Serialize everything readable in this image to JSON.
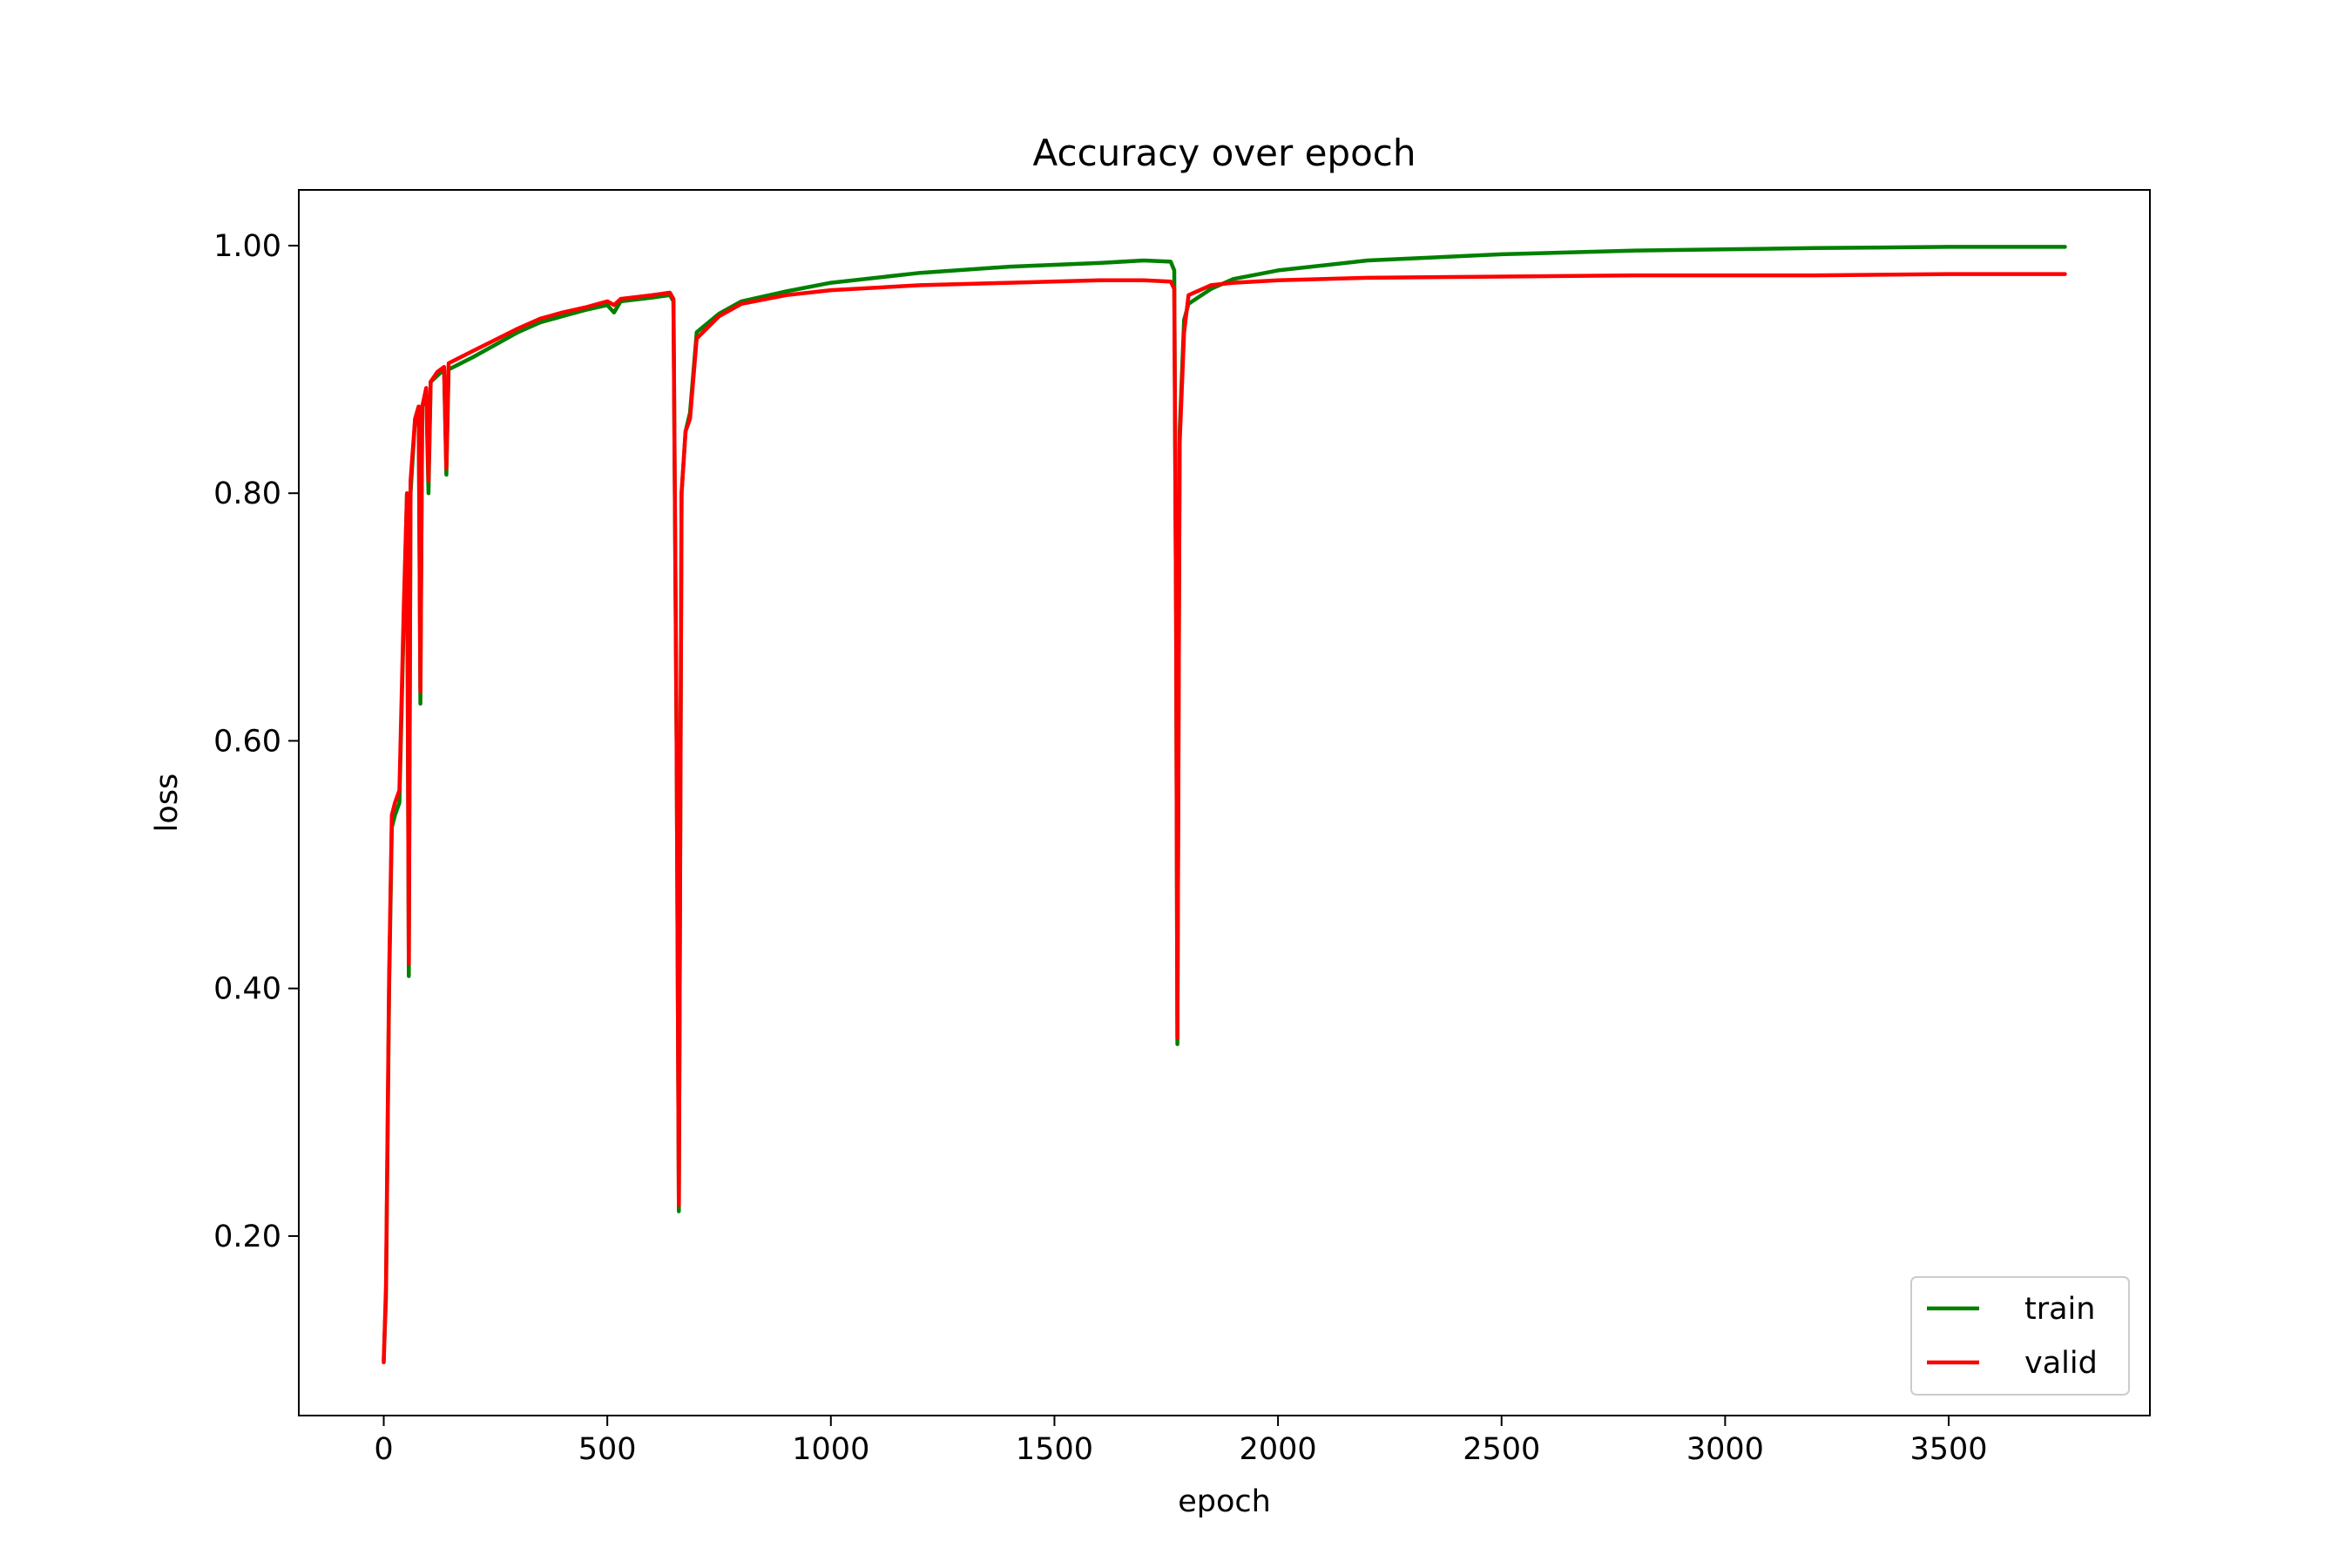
{
  "chart_data": {
    "type": "line",
    "title": "Accuracy over epoch",
    "xlabel": "epoch",
    "ylabel": "loss",
    "xlim": [
      -190,
      3950
    ],
    "ylim": [
      0.055,
      1.045
    ],
    "x_ticks": [
      0,
      500,
      1000,
      1500,
      2000,
      2500,
      3000,
      3500
    ],
    "x_tick_labels": [
      "0",
      "500",
      "1000",
      "1500",
      "2000",
      "2500",
      "3000",
      "3500"
    ],
    "y_ticks": [
      0.2,
      0.4,
      0.6,
      0.8,
      1.0
    ],
    "y_tick_labels": [
      "0.20",
      "0.40",
      "0.60",
      "0.80",
      "1.00"
    ],
    "grid": false,
    "legend_position": "lower-right",
    "series": [
      {
        "name": "train",
        "color": "#008000",
        "points": [
          [
            0,
            0.1
          ],
          [
            5,
            0.15
          ],
          [
            12,
            0.4
          ],
          [
            18,
            0.53
          ],
          [
            25,
            0.54
          ],
          [
            35,
            0.55
          ],
          [
            45,
            0.7
          ],
          [
            52,
            0.8
          ],
          [
            56,
            0.41
          ],
          [
            60,
            0.8
          ],
          [
            70,
            0.86
          ],
          [
            78,
            0.87
          ],
          [
            82,
            0.63
          ],
          [
            86,
            0.87
          ],
          [
            95,
            0.88
          ],
          [
            100,
            0.8
          ],
          [
            105,
            0.89
          ],
          [
            120,
            0.895
          ],
          [
            135,
            0.9
          ],
          [
            140,
            0.815
          ],
          [
            145,
            0.9
          ],
          [
            200,
            0.91
          ],
          [
            300,
            0.93
          ],
          [
            350,
            0.938
          ],
          [
            400,
            0.943
          ],
          [
            450,
            0.948
          ],
          [
            500,
            0.952
          ],
          [
            515,
            0.946
          ],
          [
            530,
            0.955
          ],
          [
            600,
            0.958
          ],
          [
            640,
            0.96
          ],
          [
            648,
            0.955
          ],
          [
            655,
            0.6
          ],
          [
            660,
            0.22
          ],
          [
            666,
            0.8
          ],
          [
            675,
            0.85
          ],
          [
            685,
            0.865
          ],
          [
            700,
            0.93
          ],
          [
            750,
            0.945
          ],
          [
            800,
            0.955
          ],
          [
            900,
            0.963
          ],
          [
            1000,
            0.97
          ],
          [
            1200,
            0.978
          ],
          [
            1400,
            0.983
          ],
          [
            1600,
            0.986
          ],
          [
            1700,
            0.988
          ],
          [
            1760,
            0.987
          ],
          [
            1768,
            0.98
          ],
          [
            1772,
            0.7
          ],
          [
            1775,
            0.355
          ],
          [
            1780,
            0.85
          ],
          [
            1790,
            0.94
          ],
          [
            1800,
            0.953
          ],
          [
            1850,
            0.965
          ],
          [
            1900,
            0.973
          ],
          [
            2000,
            0.98
          ],
          [
            2200,
            0.988
          ],
          [
            2500,
            0.993
          ],
          [
            2800,
            0.996
          ],
          [
            3200,
            0.998
          ],
          [
            3500,
            0.999
          ],
          [
            3760,
            0.999
          ]
        ]
      },
      {
        "name": "valid",
        "color": "#ff0000",
        "points": [
          [
            0,
            0.098
          ],
          [
            5,
            0.16
          ],
          [
            12,
            0.41
          ],
          [
            18,
            0.54
          ],
          [
            25,
            0.55
          ],
          [
            35,
            0.56
          ],
          [
            45,
            0.71
          ],
          [
            52,
            0.8
          ],
          [
            56,
            0.42
          ],
          [
            60,
            0.81
          ],
          [
            70,
            0.86
          ],
          [
            78,
            0.87
          ],
          [
            82,
            0.64
          ],
          [
            86,
            0.87
          ],
          [
            95,
            0.885
          ],
          [
            100,
            0.81
          ],
          [
            105,
            0.89
          ],
          [
            120,
            0.898
          ],
          [
            135,
            0.902
          ],
          [
            140,
            0.82
          ],
          [
            145,
            0.905
          ],
          [
            200,
            0.915
          ],
          [
            300,
            0.933
          ],
          [
            350,
            0.941
          ],
          [
            400,
            0.946
          ],
          [
            450,
            0.95
          ],
          [
            500,
            0.955
          ],
          [
            515,
            0.952
          ],
          [
            530,
            0.957
          ],
          [
            600,
            0.96
          ],
          [
            640,
            0.962
          ],
          [
            648,
            0.957
          ],
          [
            655,
            0.6
          ],
          [
            660,
            0.225
          ],
          [
            666,
            0.8
          ],
          [
            675,
            0.85
          ],
          [
            685,
            0.86
          ],
          [
            700,
            0.925
          ],
          [
            750,
            0.943
          ],
          [
            800,
            0.953
          ],
          [
            900,
            0.96
          ],
          [
            1000,
            0.964
          ],
          [
            1200,
            0.968
          ],
          [
            1400,
            0.97
          ],
          [
            1600,
            0.972
          ],
          [
            1700,
            0.972
          ],
          [
            1760,
            0.971
          ],
          [
            1768,
            0.965
          ],
          [
            1772,
            0.7
          ],
          [
            1775,
            0.36
          ],
          [
            1780,
            0.84
          ],
          [
            1790,
            0.93
          ],
          [
            1800,
            0.96
          ],
          [
            1850,
            0.968
          ],
          [
            1900,
            0.97
          ],
          [
            2000,
            0.972
          ],
          [
            2200,
            0.974
          ],
          [
            2500,
            0.975
          ],
          [
            2800,
            0.976
          ],
          [
            3200,
            0.976
          ],
          [
            3500,
            0.977
          ],
          [
            3760,
            0.977
          ]
        ]
      }
    ]
  }
}
